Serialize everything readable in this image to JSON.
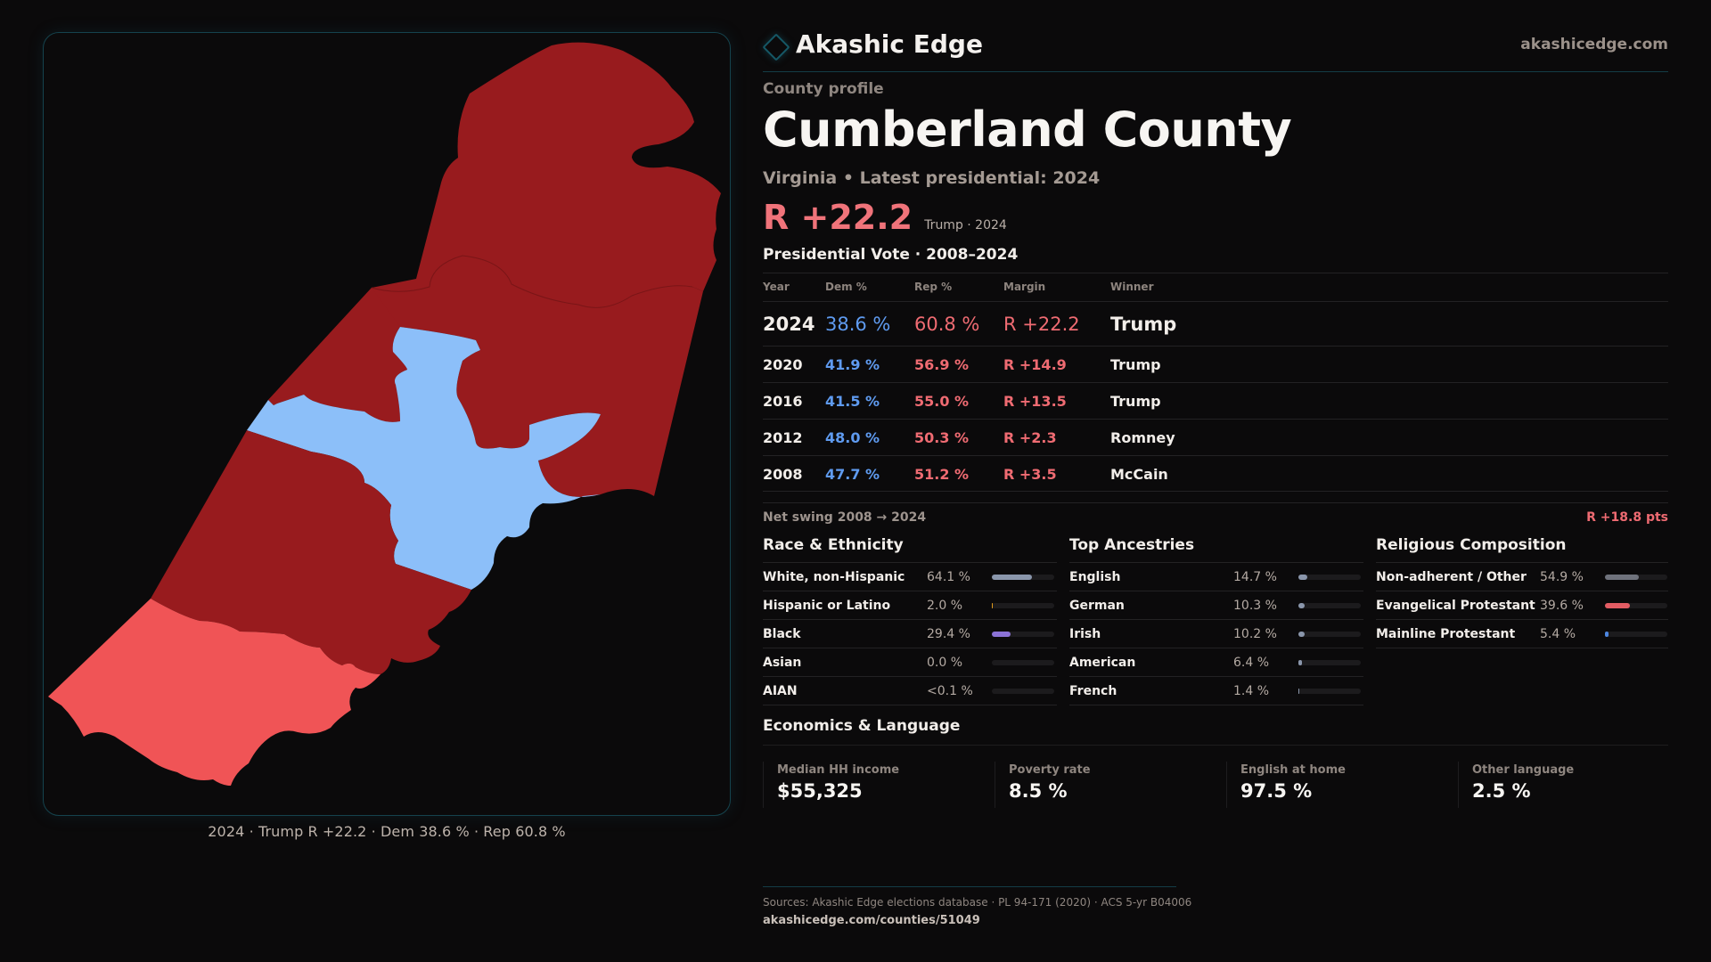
{
  "brand": {
    "name": "Akashic Edge",
    "url": "akashicedge.com",
    "logo_icon": "diamond-outline-icon",
    "accent_color": "#155866"
  },
  "profile": {
    "eyebrow": "County profile",
    "title": "Cumberland County",
    "subtitle": "Virginia • Latest presidential: 2024",
    "headline_margin": "R +22.2",
    "headline_winner": "Trump · 2024"
  },
  "colors": {
    "dem": "#5f9bf0",
    "rep": "#ef6b72",
    "map_rep_strong": "#981b1e",
    "map_rep_lean": "#f05456",
    "map_dem": "#8cbff9"
  },
  "presidential": {
    "title": "Presidential Vote · 2008–2024",
    "columns": [
      "Year",
      "Dem %",
      "Rep %",
      "Margin",
      "Winner"
    ],
    "rows": [
      {
        "year": "2024",
        "dem": "38.6 %",
        "rep": "60.8 %",
        "margin": "R +22.2",
        "winner": "Trump"
      },
      {
        "year": "2020",
        "dem": "41.9 %",
        "rep": "56.9 %",
        "margin": "R +14.9",
        "winner": "Trump"
      },
      {
        "year": "2016",
        "dem": "41.5 %",
        "rep": "55.0 %",
        "margin": "R +13.5",
        "winner": "Trump"
      },
      {
        "year": "2012",
        "dem": "48.0 %",
        "rep": "50.3 %",
        "margin": "R +2.3",
        "winner": "Romney"
      },
      {
        "year": "2008",
        "dem": "47.7 %",
        "rep": "51.2 %",
        "margin": "R +3.5",
        "winner": "McCain"
      }
    ],
    "net_swing_label": "Net swing 2008 → 2024",
    "net_swing_value": "R +18.8 pts"
  },
  "race": {
    "title": "Race & Ethnicity",
    "rows": [
      {
        "label": "White, non-Hispanic",
        "value": "64.1 %",
        "pct": 64.1,
        "color": "#8a96ab"
      },
      {
        "label": "Hispanic or Latino",
        "value": "2.0 %",
        "pct": 2.0,
        "color": "#e09a1c"
      },
      {
        "label": "Black",
        "value": "29.4 %",
        "pct": 29.4,
        "color": "#8b72d6"
      },
      {
        "label": "Asian",
        "value": "0.0 %",
        "pct": 0.0,
        "color": "#4fb3a8"
      },
      {
        "label": "AIAN",
        "value": "<0.1 %",
        "pct": 0.0,
        "color": "#c7a36b"
      }
    ]
  },
  "ancestry": {
    "title": "Top Ancestries",
    "rows": [
      {
        "label": "English",
        "value": "14.7 %",
        "pct": 14.7,
        "color": "#8a96ab"
      },
      {
        "label": "German",
        "value": "10.3 %",
        "pct": 10.3,
        "color": "#8a96ab"
      },
      {
        "label": "Irish",
        "value": "10.2 %",
        "pct": 10.2,
        "color": "#8a96ab"
      },
      {
        "label": "American",
        "value": "6.4 %",
        "pct": 6.4,
        "color": "#8a96ab"
      },
      {
        "label": "French",
        "value": "1.4 %",
        "pct": 1.4,
        "color": "#8a96ab"
      }
    ]
  },
  "religion": {
    "title": "Religious Composition",
    "rows": [
      {
        "label": "Non-adherent / Other",
        "value": "54.9 %",
        "pct": 54.9,
        "color": "#6f727c"
      },
      {
        "label": "Evangelical Protestant",
        "value": "39.6 %",
        "pct": 39.6,
        "color": "#e25c63"
      },
      {
        "label": "Mainline Protestant",
        "value": "5.4 %",
        "pct": 5.4,
        "color": "#4d86e0"
      }
    ]
  },
  "economics": {
    "title": "Economics & Language",
    "cards": [
      {
        "label": "Median HH income",
        "value": "$55,325"
      },
      {
        "label": "Poverty rate",
        "value": "8.5 %"
      },
      {
        "label": "English at home",
        "value": "97.5 %"
      },
      {
        "label": "Other language",
        "value": "2.5 %"
      }
    ]
  },
  "map": {
    "caption": "2024 · Trump R +22.2 · Dem 38.6 % · Rep 60.8 %",
    "precincts": [
      {
        "name": "north",
        "lean": "rep_strong"
      },
      {
        "name": "central-east",
        "lean": "rep_strong"
      },
      {
        "name": "central-west",
        "lean": "rep_strong"
      },
      {
        "name": "center",
        "lean": "dem"
      },
      {
        "name": "southwest",
        "lean": "rep_strong"
      },
      {
        "name": "south",
        "lean": "rep_lean"
      }
    ]
  },
  "footer": {
    "sources": "Sources: Akashic Edge elections database · PL 94-171 (2020) · ACS 5-yr B04006",
    "url": "akashicedge.com/counties/51049"
  }
}
